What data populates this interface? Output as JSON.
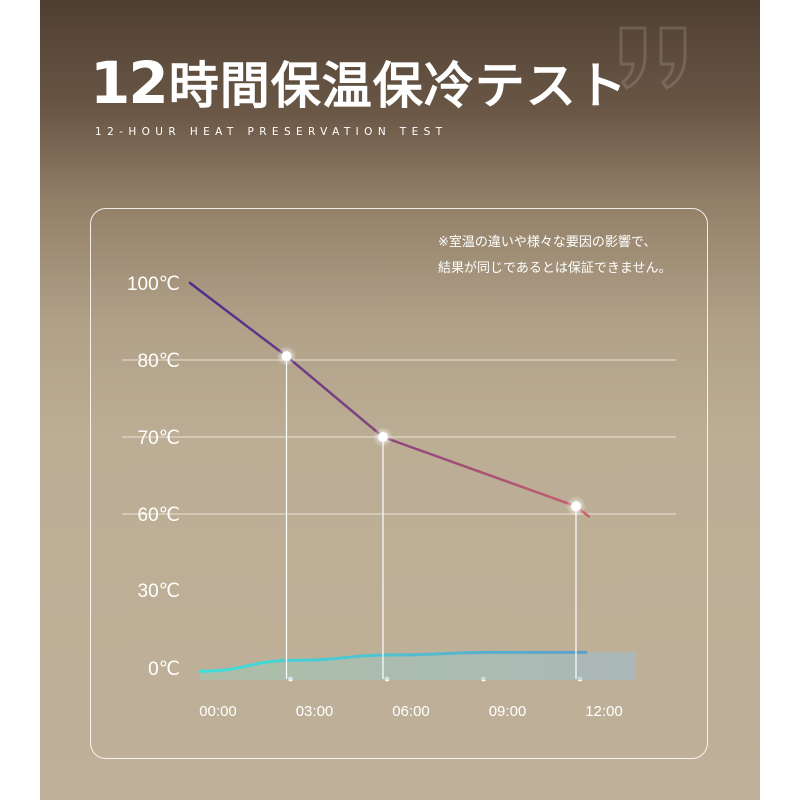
{
  "header": {
    "title_number": "12",
    "title_text": "時間保温保冷テスト",
    "subtitle": "12-HOUR HEAT PRESERVATION TEST"
  },
  "note": {
    "line1": "※室温の違いや様々な要因の影響で、",
    "line2": "結果が同じであるとは保証できません。"
  },
  "colors": {
    "hot_line_start": "#4a2d8c",
    "hot_line_end": "#e26a6a",
    "cold_line_start": "#3de0d8",
    "cold_line_end": "#6b8fc4",
    "grid": "#f2ece3"
  },
  "chart_data": {
    "type": "line",
    "x_categories": [
      "00:00",
      "03:00",
      "06:00",
      "09:00",
      "12:00"
    ],
    "y_ticks": [
      "0℃",
      "30℃",
      "60℃",
      "70℃",
      "80℃",
      "100℃"
    ],
    "grid_values": [
      60,
      70,
      80
    ],
    "series": [
      {
        "points": [
          {
            "x": "00:00",
            "y": 100
          },
          {
            "x": "03:00",
            "y": 81
          },
          {
            "x": "06:00",
            "y": 70
          },
          {
            "x": "12:00",
            "y": 61
          }
        ],
        "marked": [
          "03:00",
          "06:00",
          "12:00"
        ],
        "tail_end": {
          "x_hours": 12.4,
          "y": 59
        }
      },
      {
        "points": [
          {
            "x": "00:00",
            "y": -1
          },
          {
            "x": "03:00",
            "y": 3
          },
          {
            "x": "06:00",
            "y": 5
          },
          {
            "x": "09:00",
            "y": 6
          },
          {
            "x": "12:00",
            "y": 6
          }
        ]
      }
    ],
    "x_tick_dots": [
      "03:00",
      "06:00",
      "09:00",
      "12:00"
    ]
  }
}
